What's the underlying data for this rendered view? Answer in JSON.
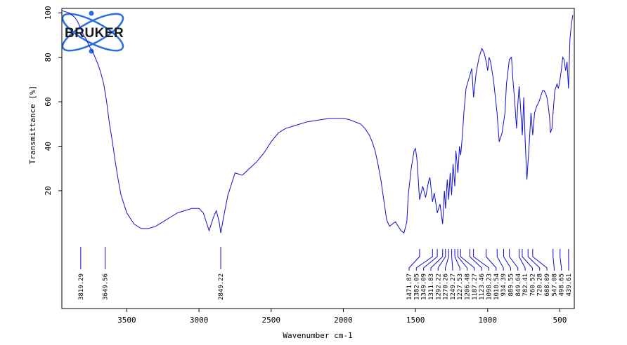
{
  "brand": {
    "logo_text": "BRUKER",
    "logo_color": "#2a6fe0"
  },
  "colors": {
    "spectrum": "#1010d0",
    "peak_marker": "#1010d0",
    "axis": "#000000"
  },
  "chart_data": {
    "type": "line",
    "title": "",
    "xlabel": "Wavenumber cm-1",
    "ylabel": "Transmittance [%]",
    "xlim": [
      3950,
      400
    ],
    "ylim": [
      -33,
      102
    ],
    "x_reversed": true,
    "x_ticks": [
      3500,
      3000,
      2500,
      2000,
      1500,
      1000,
      500
    ],
    "y_ticks": [
      20,
      40,
      60,
      80,
      100
    ],
    "grid": false,
    "series": [
      {
        "x": [
          3950,
          3900,
          3860,
          3840,
          3820,
          3800,
          3780,
          3760,
          3740,
          3720,
          3700,
          3680,
          3660,
          3640,
          3620,
          3600,
          3580,
          3560,
          3540,
          3500,
          3450,
          3400,
          3350,
          3300,
          3250,
          3200,
          3150,
          3100,
          3050,
          3000,
          2970,
          2950,
          2930,
          2920,
          2900,
          2880,
          2860,
          2849,
          2830,
          2800,
          2780,
          2750,
          2700,
          2650,
          2600,
          2550,
          2500,
          2450,
          2400,
          2350,
          2300,
          2250,
          2200,
          2150,
          2100,
          2050,
          2000,
          1960,
          1920,
          1880,
          1850,
          1820,
          1800,
          1780,
          1760,
          1740,
          1720,
          1700,
          1680,
          1660,
          1640,
          1620,
          1600,
          1580,
          1560,
          1550,
          1530,
          1510,
          1500,
          1490,
          1472,
          1450,
          1430,
          1410,
          1400,
          1382,
          1370,
          1349,
          1330,
          1312,
          1300,
          1292,
          1280,
          1270,
          1260,
          1250,
          1240,
          1228,
          1220,
          1206,
          1195,
          1187,
          1175,
          1165,
          1150,
          1123,
          1110,
          1098,
          1080,
          1060,
          1040,
          1025,
          1010,
          1000,
          990,
          980,
          960,
          935,
          920,
          900,
          880,
          870,
          850,
          835,
          825,
          815,
          800,
          790,
          782,
          775,
          760,
          750,
          740,
          728,
          715,
          700,
          688,
          675,
          660,
          645,
          630,
          620,
          610,
          600,
          590,
          580,
          570,
          565,
          555,
          547,
          535,
          520,
          510,
          499,
          490,
          480,
          470,
          460,
          450,
          440,
          430,
          420,
          410
        ],
        "values": [
          101,
          100,
          98,
          96,
          93,
          90,
          88,
          85,
          83,
          80,
          77,
          73,
          68,
          60,
          50,
          42,
          33,
          25,
          18,
          10,
          5,
          3,
          3,
          4,
          6,
          8,
          10,
          11,
          12,
          12,
          10,
          6,
          2,
          4,
          8,
          11,
          6,
          1,
          8,
          18,
          22,
          28,
          27,
          30,
          33,
          37,
          42,
          46,
          48,
          49,
          50,
          51,
          51.5,
          52,
          52.5,
          52.5,
          52.5,
          52,
          51,
          50,
          48,
          45,
          42,
          38,
          32,
          25,
          16,
          7,
          4,
          5,
          6,
          4,
          2,
          1,
          6,
          18,
          30,
          38,
          39,
          34,
          16,
          22,
          17,
          24,
          26,
          15,
          19,
          10,
          14,
          5,
          20,
          12,
          25,
          16,
          28,
          18,
          32,
          22,
          38,
          28,
          40,
          36,
          45,
          55,
          66,
          72,
          75,
          62,
          73,
          80,
          84,
          82,
          78,
          74,
          80,
          78,
          70,
          55,
          42,
          46,
          55,
          68,
          79,
          80,
          70,
          62,
          48,
          60,
          67,
          60,
          45,
          62,
          42,
          25,
          38,
          55,
          45,
          55,
          58,
          60,
          63,
          65,
          65,
          64,
          62,
          58,
          52,
          46,
          48,
          55,
          65,
          68,
          66,
          70,
          74,
          80,
          79,
          74,
          78,
          66,
          88,
          95,
          99
        ]
      }
    ],
    "peak_labels": [
      3819.29,
      3649.56,
      2849.22,
      1471.87,
      1382.05,
      1349.09,
      1311.83,
      1292.22,
      1270.26,
      1249.27,
      1227.53,
      1206.48,
      1187.27,
      1123.46,
      1098.23,
      1010.54,
      934.39,
      889.55,
      849.64,
      782.41,
      760.52,
      720.28,
      688.09,
      547.08,
      498.65,
      439.61
    ]
  }
}
